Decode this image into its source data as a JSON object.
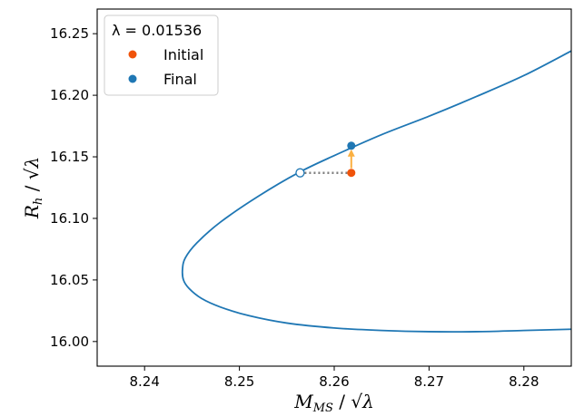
{
  "chart_data": {
    "type": "line",
    "xlabel": "M_MS / √λ",
    "ylabel": "R_h / √λ",
    "xlim": [
      8.235,
      8.285
    ],
    "ylim": [
      15.98,
      16.27
    ],
    "xticks": [
      "8.24",
      "8.25",
      "8.26",
      "8.27",
      "8.28"
    ],
    "yticks": [
      "16.00",
      "16.05",
      "16.10",
      "16.15",
      "16.20",
      "16.25"
    ],
    "grid": false,
    "legend": {
      "placement": "top-left",
      "title": "λ = 0.01536",
      "entries": [
        {
          "label": "Initial",
          "color": "#f0530a"
        },
        {
          "label": "Final",
          "color": "#1f77b4"
        }
      ]
    },
    "series": [
      {
        "color": "#1f77b4",
        "x": [
          8.285,
          8.28,
          8.275,
          8.27,
          8.265,
          8.26,
          8.2562,
          8.252,
          8.248,
          8.2455,
          8.2443,
          8.244,
          8.2441,
          8.2447,
          8.246,
          8.248,
          8.251,
          8.255,
          8.26,
          8.265,
          8.27,
          8.275,
          8.28,
          8.285
        ],
        "y": [
          16.236,
          16.216,
          16.199,
          16.183,
          16.168,
          16.151,
          16.137,
          16.118,
          16.097,
          16.08,
          16.068,
          16.059,
          16.05,
          16.043,
          16.035,
          16.028,
          16.021,
          16.015,
          16.011,
          16.009,
          16.008,
          16.008,
          16.009,
          16.01
        ]
      }
    ],
    "points": {
      "initial": {
        "x": 8.2618,
        "y": 16.137,
        "color": "#f0530a"
      },
      "final": {
        "x": 8.2618,
        "y": 16.159,
        "color": "#1f77b4"
      },
      "open_marker": {
        "x": 8.2564,
        "y": 16.137,
        "color": "#1f77b4"
      }
    },
    "arrow_color": "#fbb040",
    "dotted_line_color": "#808080"
  }
}
